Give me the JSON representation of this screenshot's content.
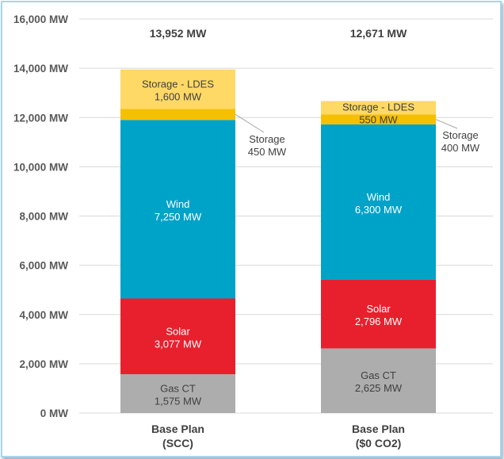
{
  "chart_data": {
    "type": "bar",
    "stacked": true,
    "title": "",
    "xlabel": "",
    "ylabel": "",
    "ylim": [
      0,
      16000
    ],
    "yticks": [
      "0 MW",
      "2,000 MW",
      "4,000 MW",
      "6,000 MW",
      "8,000 MW",
      "10,000 MW",
      "12,000 MW",
      "14,000 MW",
      "16,000 MW"
    ],
    "ytick_values": [
      0,
      2000,
      4000,
      6000,
      8000,
      10000,
      12000,
      14000,
      16000
    ],
    "grid": true,
    "categories": [
      [
        "Base Plan",
        "(SCC)"
      ],
      [
        "Base Plan",
        "($0 CO2)"
      ]
    ],
    "totals": [
      13952,
      12671
    ],
    "total_labels": [
      "13,952 MW",
      "12,671 MW"
    ],
    "series": [
      {
        "name": "Gas CT",
        "values": [
          1575,
          2625
        ],
        "labels": [
          "1,575 MW",
          "2,625 MW"
        ],
        "color": "#ADADAD",
        "text_color": "#404040"
      },
      {
        "name": "Solar",
        "values": [
          3077,
          2796
        ],
        "labels": [
          "3,077 MW",
          "2,796 MW"
        ],
        "color": "#E8202E",
        "text_color": "#ffffff"
      },
      {
        "name": "Wind",
        "values": [
          7250,
          6300
        ],
        "labels": [
          "7,250 MW",
          "6,300 MW"
        ],
        "color": "#00A3C8",
        "text_color": "#ffffff"
      },
      {
        "name": "Storage",
        "values": [
          450,
          400
        ],
        "labels": [
          "450 MW",
          "400 MW"
        ],
        "color": "#F5C000",
        "text_color": "#404040",
        "callout": true
      },
      {
        "name": "Storage - LDES",
        "values": [
          1600,
          550
        ],
        "labels": [
          "1,600 MW",
          "550 MW"
        ],
        "color": "#FFD966",
        "text_color": "#404040"
      }
    ]
  }
}
